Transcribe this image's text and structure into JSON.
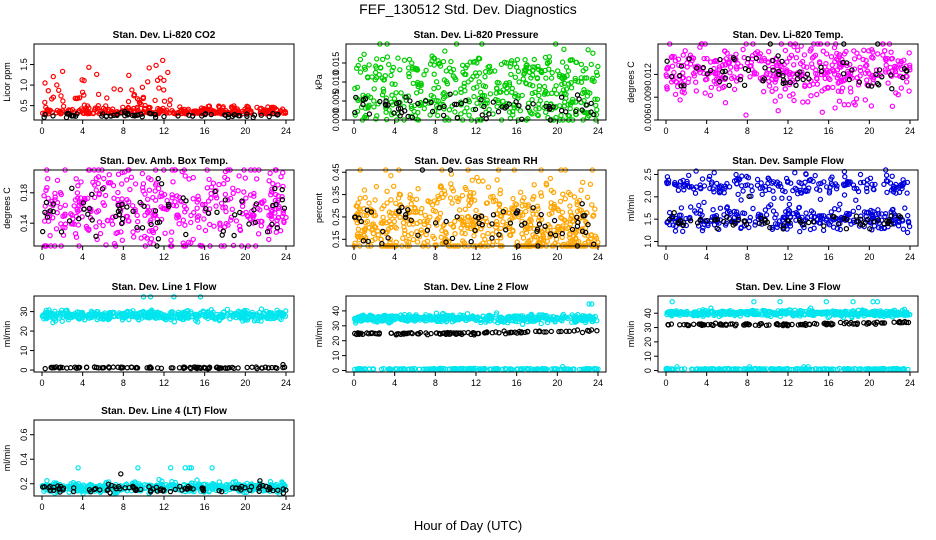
{
  "page": {
    "title": "FEF_130512  Std. Dev. Diagnostics",
    "xlabel": "Hour of Day (UTC)"
  },
  "chart_data": [
    {
      "type": "scatter",
      "title": "Stan. Dev. Li-820 CO2",
      "ylabel": "Licor ppm",
      "xlim": [
        0,
        24
      ],
      "ylim": [
        0.15,
        2.0
      ],
      "xticks": [
        0,
        4,
        8,
        12,
        16,
        20,
        24
      ],
      "yticks": [
        0.5,
        1.0,
        1.5
      ],
      "ytick_labels": [
        "0.5",
        "1.0",
        "1.5"
      ],
      "series": [
        {
          "color": "#ff0000",
          "pattern": "spiky",
          "base": 0.3,
          "spread": 0.08,
          "spike_max": 1.95,
          "spike_end": 13.5,
          "n": 360
        },
        {
          "color": "#000000",
          "pattern": "flat",
          "base": 0.26,
          "spread": 0.03,
          "n": 70
        }
      ]
    },
    {
      "type": "scatter",
      "title": "Stan. Dev. Li-820 Pressure",
      "ylabel": "kPa",
      "xlim": [
        0,
        24
      ],
      "ylim": [
        0.0,
        0.02
      ],
      "xticks": [
        0,
        4,
        8,
        12,
        16,
        20,
        24
      ],
      "yticks": [
        0.0,
        0.005,
        0.01,
        0.015
      ],
      "ytick_labels": [
        "0.000",
        "0.005",
        "0.010",
        "0.015"
      ],
      "series": [
        {
          "color": "#00cc00",
          "pattern": "band",
          "base": 0.0125,
          "spread": 0.0025,
          "n": 220
        },
        {
          "color": "#00cc00",
          "pattern": "band",
          "base": 0.004,
          "spread": 0.003,
          "n": 260
        },
        {
          "color": "#000000",
          "pattern": "band",
          "base": 0.0035,
          "spread": 0.0015,
          "n": 70
        }
      ]
    },
    {
      "type": "scatter",
      "title": "Stan. Dev. Li-820 Temp.",
      "ylabel": "degrees C",
      "xlim": [
        0,
        24
      ],
      "ylim": [
        0.006,
        0.016
      ],
      "xticks": [
        0,
        4,
        8,
        12,
        16,
        20,
        24
      ],
      "yticks": [
        0.006,
        0.009,
        0.012
      ],
      "ytick_labels": [
        "0.006",
        "0.009",
        "0.012"
      ],
      "series": [
        {
          "color": "#ff00ff",
          "pattern": "band",
          "base": 0.0123,
          "spread": 0.0018,
          "n": 420
        },
        {
          "color": "#000000",
          "pattern": "band",
          "base": 0.0123,
          "spread": 0.0012,
          "n": 70
        }
      ]
    },
    {
      "type": "scatter",
      "title": "Stan. Dev. Amb. Box Temp.",
      "ylabel": "degrees C",
      "xlim": [
        0,
        24
      ],
      "ylim": [
        0.11,
        0.21
      ],
      "xticks": [
        0,
        4,
        8,
        12,
        16,
        20,
        24
      ],
      "yticks": [
        0.14,
        0.18
      ],
      "ytick_labels": [
        "0.14",
        "0.18"
      ],
      "series": [
        {
          "color": "#ff00ff",
          "pattern": "band",
          "base": 0.16,
          "spread": 0.03,
          "n": 420
        },
        {
          "color": "#000000",
          "pattern": "band",
          "base": 0.155,
          "spread": 0.02,
          "n": 70
        }
      ]
    },
    {
      "type": "scatter",
      "title": "Stan. Dev. Gas Stream RH",
      "ylabel": "percent",
      "xlim": [
        0,
        24
      ],
      "ylim": [
        0.12,
        0.46
      ],
      "xticks": [
        0,
        4,
        8,
        12,
        16,
        20,
        24
      ],
      "yticks": [
        0.15,
        0.25,
        0.35,
        0.45
      ],
      "ytick_labels": [
        "0.15",
        "0.25",
        "0.35",
        "0.45"
      ],
      "series": [
        {
          "color": "#ffa500",
          "pattern": "band",
          "base": 0.22,
          "spread": 0.09,
          "n": 600
        },
        {
          "color": "#000000",
          "pattern": "band",
          "base": 0.22,
          "spread": 0.06,
          "n": 70
        }
      ]
    },
    {
      "type": "scatter",
      "title": "Stan. Dev. Sample Flow",
      "ylabel": "ml/min",
      "xlim": [
        0,
        24
      ],
      "ylim": [
        0.9,
        2.6
      ],
      "xticks": [
        0,
        4,
        8,
        12,
        16,
        20,
        24
      ],
      "yticks": [
        1.0,
        1.5,
        2.0,
        2.5
      ],
      "ytick_labels": [
        "1.0",
        "1.5",
        "2.0",
        "2.5"
      ],
      "series": [
        {
          "color": "#0000dd",
          "pattern": "band",
          "base": 2.25,
          "spread": 0.12,
          "n": 200
        },
        {
          "color": "#0000dd",
          "pattern": "band",
          "base": 1.5,
          "spread": 0.13,
          "n": 280
        },
        {
          "color": "#000000",
          "pattern": "band",
          "base": 1.45,
          "spread": 0.07,
          "n": 70
        }
      ]
    },
    {
      "type": "scatter",
      "title": "Stan. Dev. Line 1 Flow",
      "ylabel": "ml/min",
      "xlim": [
        0,
        24
      ],
      "ylim": [
        -1,
        38
      ],
      "xticks": [
        0,
        4,
        8,
        12,
        16,
        20,
        24
      ],
      "yticks": [
        0,
        10,
        20,
        30
      ],
      "ytick_labels": [
        "0",
        "10",
        "20",
        "30"
      ],
      "series": [
        {
          "color": "#00e5ee",
          "pattern": "band",
          "base": 28,
          "spread": 1.2,
          "n": 500
        },
        {
          "color": "#000000",
          "pattern": "flat",
          "base": 1.2,
          "spread": 0.2,
          "n": 110
        }
      ]
    },
    {
      "type": "scatter",
      "title": "Stan. Dev. Line 2 Flow",
      "ylabel": "ml/min",
      "xlim": [
        0,
        24
      ],
      "ylim": [
        -1,
        50
      ],
      "xticks": [
        0,
        4,
        8,
        12,
        16,
        20,
        24
      ],
      "yticks": [
        0,
        10,
        20,
        30,
        40
      ],
      "ytick_labels": [
        "0",
        "10",
        "20",
        "30",
        "40"
      ],
      "series": [
        {
          "color": "#00e5ee",
          "pattern": "band",
          "base": 35,
          "spread": 1.2,
          "n": 500
        },
        {
          "color": "#000000",
          "pattern": "trend",
          "base": 25,
          "spread": 0.4,
          "n": 110
        },
        {
          "color": "#00e5ee",
          "pattern": "flat",
          "base": 1,
          "spread": 0.2,
          "n": 200
        }
      ]
    },
    {
      "type": "scatter",
      "title": "Stan. Dev. Line 3 Flow",
      "ylabel": "ml/min",
      "xlim": [
        0,
        24
      ],
      "ylim": [
        -1,
        52
      ],
      "xticks": [
        0,
        4,
        8,
        12,
        16,
        20,
        24
      ],
      "yticks": [
        0,
        10,
        20,
        30,
        40
      ],
      "ytick_labels": [
        "0",
        "10",
        "20",
        "30",
        "40"
      ],
      "series": [
        {
          "color": "#00e5ee",
          "pattern": "band",
          "base": 40,
          "spread": 1.0,
          "n": 500
        },
        {
          "color": "#000000",
          "pattern": "trend",
          "base": 32,
          "spread": 0.4,
          "n": 110
        },
        {
          "color": "#00e5ee",
          "pattern": "flat",
          "base": 1,
          "spread": 0.2,
          "n": 200
        }
      ]
    },
    {
      "type": "scatter",
      "title": "Stan. Dev. Line 4 (LT) Flow",
      "ylabel": "ml/min",
      "xlim": [
        0,
        24
      ],
      "ylim": [
        0.1,
        0.72
      ],
      "xticks": [
        0,
        4,
        8,
        12,
        16,
        20,
        24
      ],
      "yticks": [
        0.2,
        0.4,
        0.6
      ],
      "ytick_labels": [
        "0.2",
        "0.4",
        "0.6"
      ],
      "series": [
        {
          "color": "#00e5ee",
          "pattern": "band",
          "base": 0.17,
          "spread": 0.02,
          "n": 500
        },
        {
          "color": "#000000",
          "pattern": "band",
          "base": 0.16,
          "spread": 0.015,
          "n": 90
        }
      ]
    }
  ]
}
